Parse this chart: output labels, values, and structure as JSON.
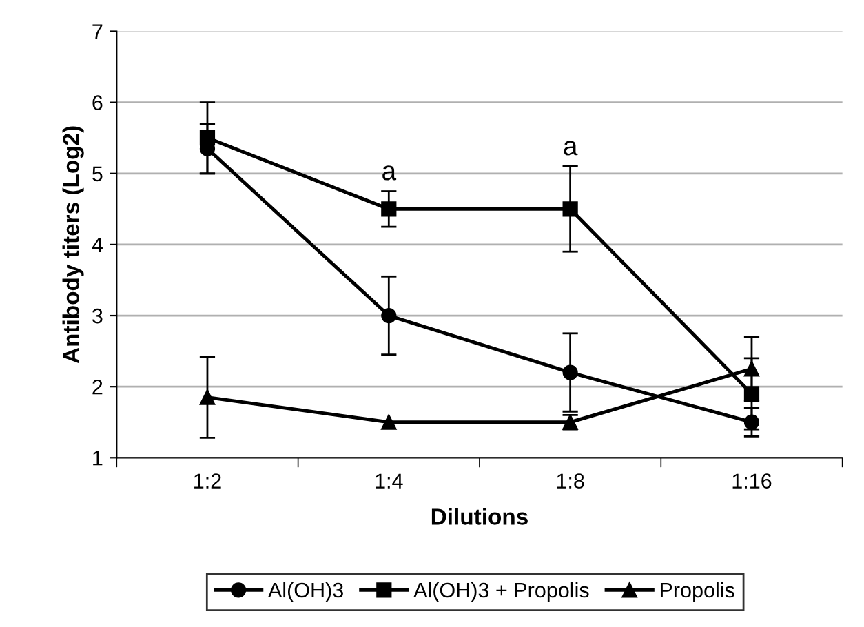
{
  "chart_data": {
    "type": "line",
    "xlabel": "Dilutions",
    "ylabel": "Antibody titers (Log2)",
    "categories": [
      "1:2",
      "1:4",
      "1:8",
      "1:16"
    ],
    "series": [
      {
        "name": "Al(OH)3",
        "color": "#000000",
        "marker": "circle",
        "values": [
          5.35,
          3.0,
          2.2,
          1.5
        ],
        "errors": [
          0.35,
          0.55,
          0.55,
          0.2
        ]
      },
      {
        "name": "Al(OH)3 + Propolis",
        "color": "#000000",
        "marker": "square",
        "values": [
          5.5,
          4.5,
          4.5,
          1.9
        ],
        "errors": [
          0.5,
          0.25,
          0.6,
          0.5
        ]
      },
      {
        "name": "Propolis",
        "color": "#000000",
        "marker": "triangle",
        "values": [
          1.85,
          1.5,
          1.5,
          2.25
        ],
        "errors": [
          0.57,
          null,
          0.1,
          0.45
        ]
      }
    ],
    "annotations": [
      "a",
      "a"
    ],
    "ylim": [
      1,
      7
    ],
    "yticks": [
      1,
      2,
      3,
      4,
      5,
      6,
      7
    ],
    "grid": "y",
    "legend": "bottom",
    "line_style": "solid"
  }
}
